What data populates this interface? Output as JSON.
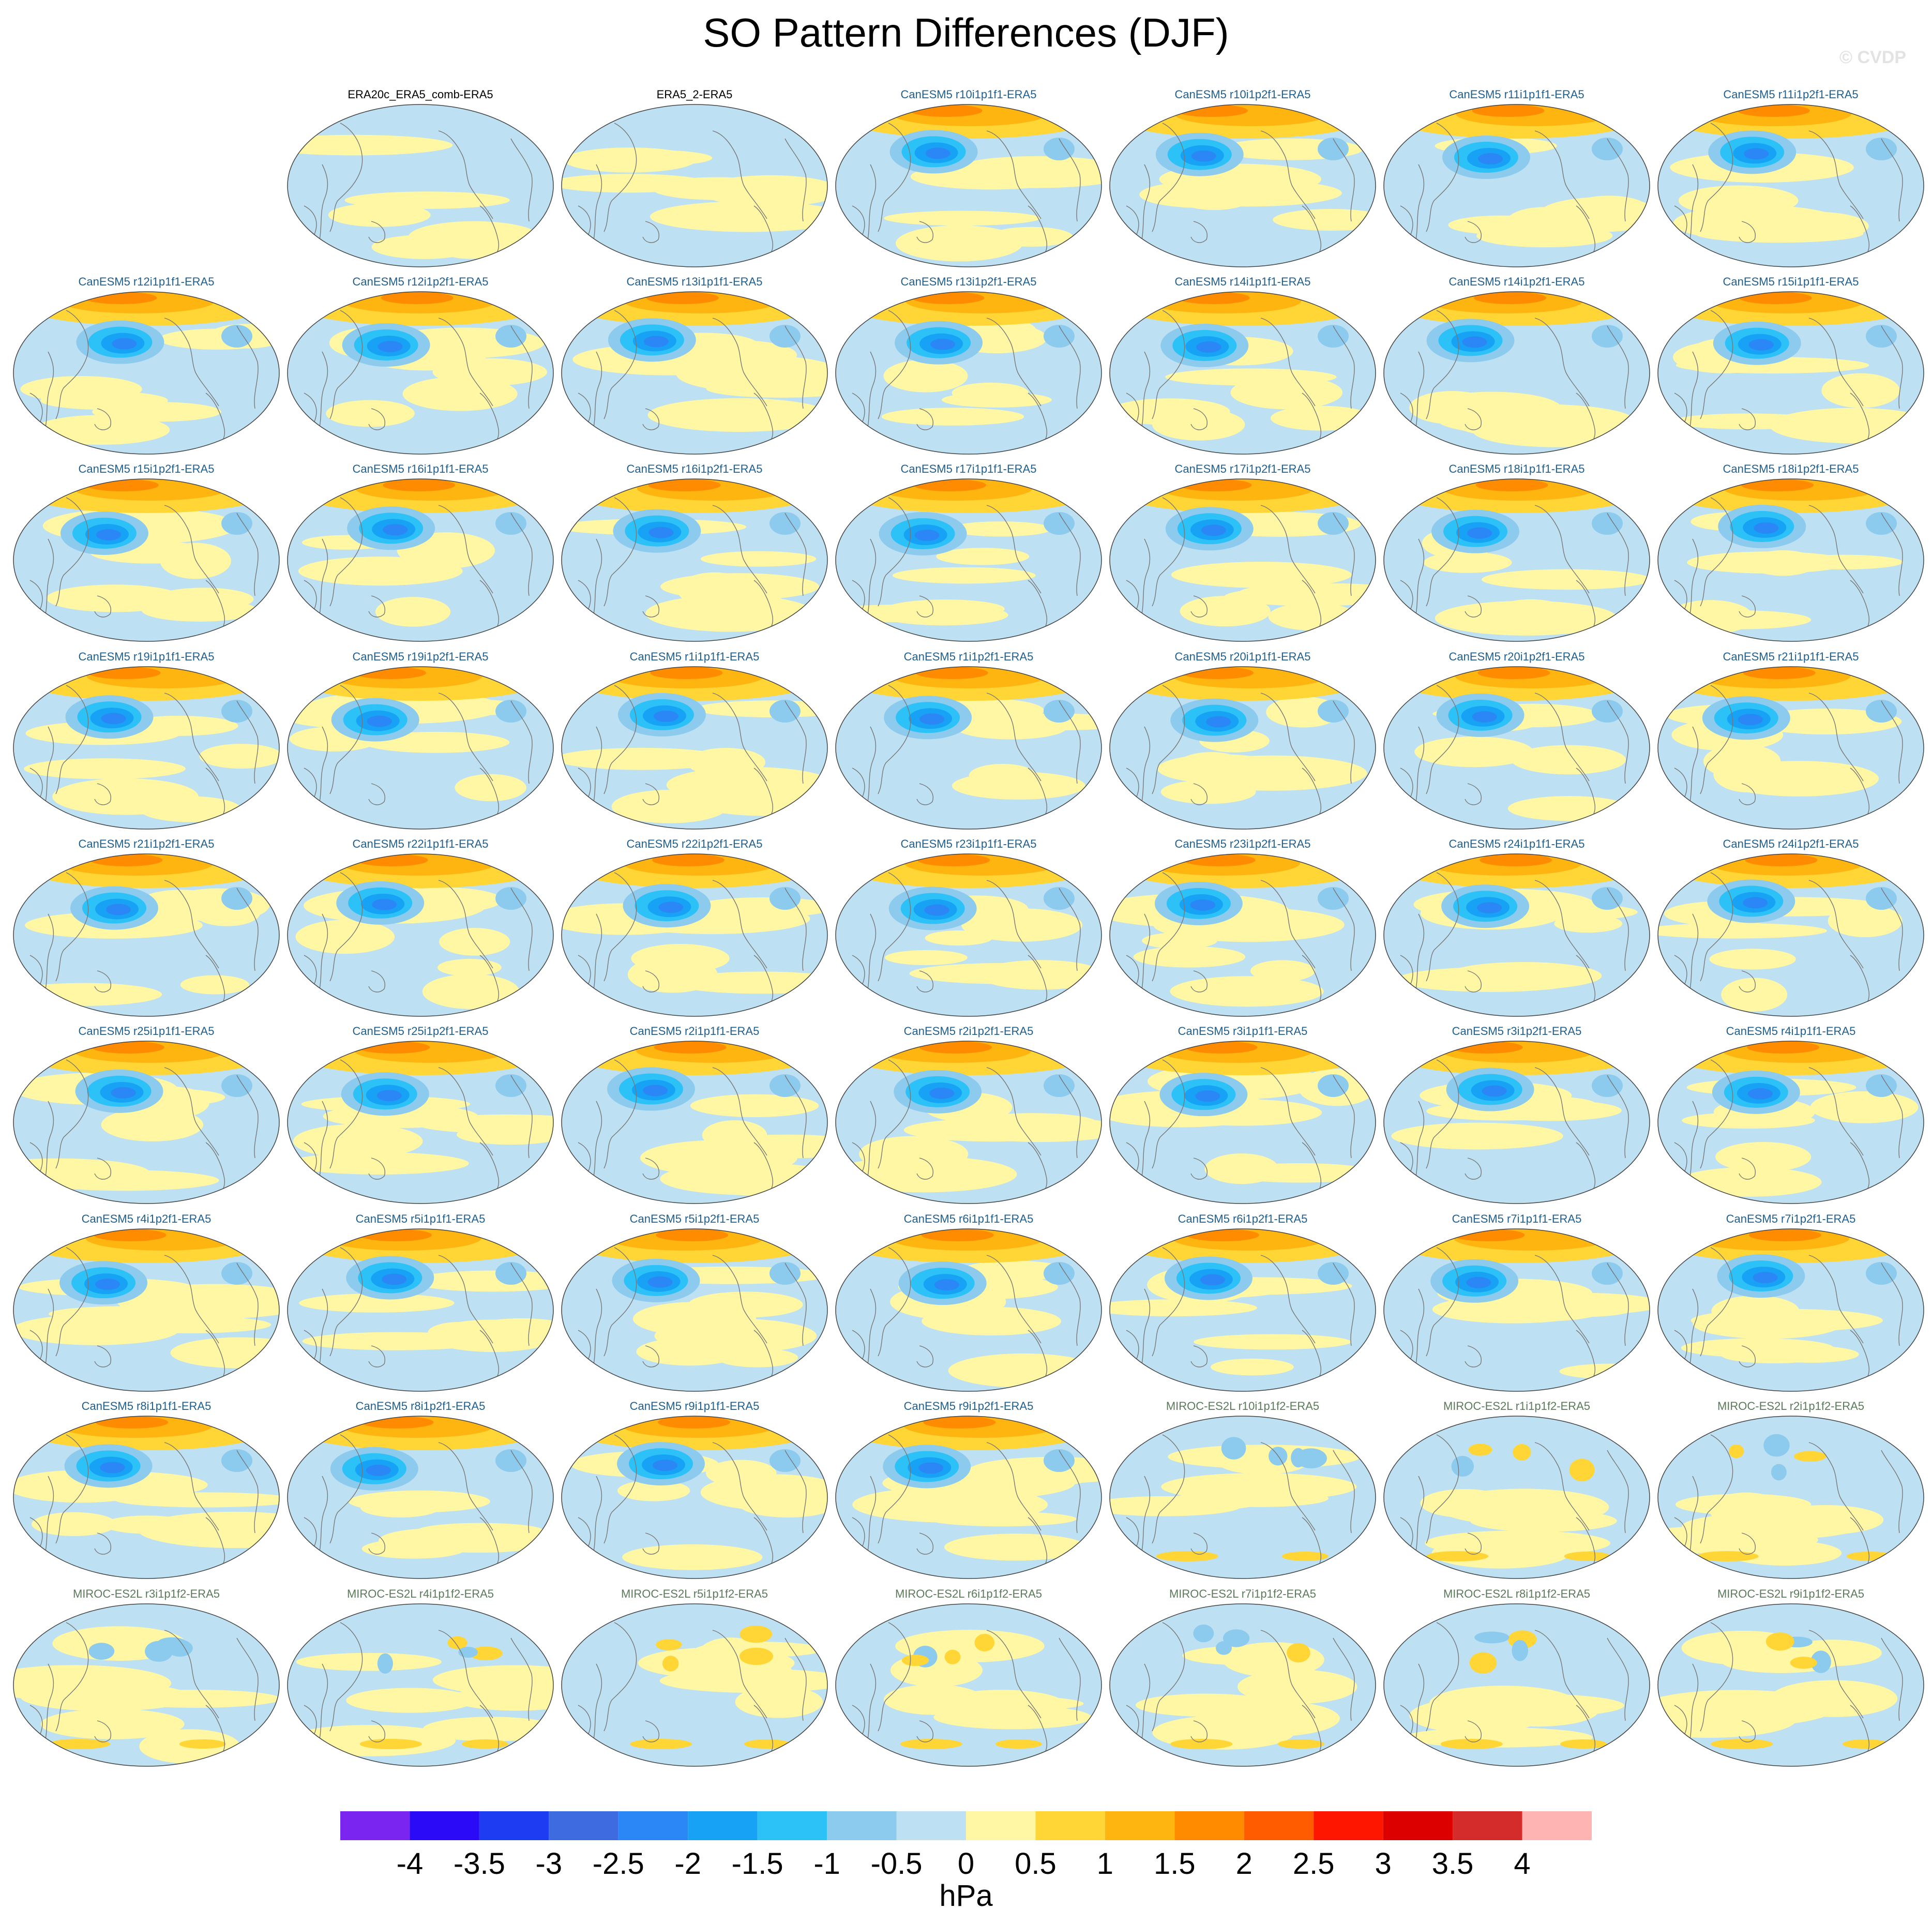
{
  "title": "SO Pattern Differences (DJF)",
  "watermark": "© CVDP",
  "chart_data": {
    "type": "heatmap",
    "title": "SO Pattern Differences (DJF)",
    "projection": "global ellipse (Robinson-like), Pacific-centered",
    "layout": {
      "rows": 9,
      "columns": 7,
      "first_row_start_column": 2
    },
    "panels": [
      {
        "label": "ERA20c_ERA5_comb-ERA5",
        "group": "obs"
      },
      {
        "label": "ERA5_2-ERA5",
        "group": "obs"
      },
      {
        "label": "CanESM5 r10i1p1f1-ERA5",
        "group": "CanESM5"
      },
      {
        "label": "CanESM5 r10i1p2f1-ERA5",
        "group": "CanESM5"
      },
      {
        "label": "CanESM5 r11i1p1f1-ERA5",
        "group": "CanESM5"
      },
      {
        "label": "CanESM5 r11i1p2f1-ERA5",
        "group": "CanESM5"
      },
      {
        "label": "CanESM5 r12i1p1f1-ERA5",
        "group": "CanESM5"
      },
      {
        "label": "CanESM5 r12i1p2f1-ERA5",
        "group": "CanESM5"
      },
      {
        "label": "CanESM5 r13i1p1f1-ERA5",
        "group": "CanESM5"
      },
      {
        "label": "CanESM5 r13i1p2f1-ERA5",
        "group": "CanESM5"
      },
      {
        "label": "CanESM5 r14i1p1f1-ERA5",
        "group": "CanESM5"
      },
      {
        "label": "CanESM5 r14i1p2f1-ERA5",
        "group": "CanESM5"
      },
      {
        "label": "CanESM5 r15i1p1f1-ERA5",
        "group": "CanESM5"
      },
      {
        "label": "CanESM5 r15i1p2f1-ERA5",
        "group": "CanESM5"
      },
      {
        "label": "CanESM5 r16i1p1f1-ERA5",
        "group": "CanESM5"
      },
      {
        "label": "CanESM5 r16i1p2f1-ERA5",
        "group": "CanESM5"
      },
      {
        "label": "CanESM5 r17i1p1f1-ERA5",
        "group": "CanESM5"
      },
      {
        "label": "CanESM5 r17i1p2f1-ERA5",
        "group": "CanESM5"
      },
      {
        "label": "CanESM5 r18i1p1f1-ERA5",
        "group": "CanESM5"
      },
      {
        "label": "CanESM5 r18i1p2f1-ERA5",
        "group": "CanESM5"
      },
      {
        "label": "CanESM5 r19i1p1f1-ERA5",
        "group": "CanESM5"
      },
      {
        "label": "CanESM5 r19i1p2f1-ERA5",
        "group": "CanESM5"
      },
      {
        "label": "CanESM5 r1i1p1f1-ERA5",
        "group": "CanESM5"
      },
      {
        "label": "CanESM5 r1i1p2f1-ERA5",
        "group": "CanESM5"
      },
      {
        "label": "CanESM5 r20i1p1f1-ERA5",
        "group": "CanESM5"
      },
      {
        "label": "CanESM5 r20i1p2f1-ERA5",
        "group": "CanESM5"
      },
      {
        "label": "CanESM5 r21i1p1f1-ERA5",
        "group": "CanESM5"
      },
      {
        "label": "CanESM5 r21i1p2f1-ERA5",
        "group": "CanESM5"
      },
      {
        "label": "CanESM5 r22i1p1f1-ERA5",
        "group": "CanESM5"
      },
      {
        "label": "CanESM5 r22i1p2f1-ERA5",
        "group": "CanESM5"
      },
      {
        "label": "CanESM5 r23i1p1f1-ERA5",
        "group": "CanESM5"
      },
      {
        "label": "CanESM5 r23i1p2f1-ERA5",
        "group": "CanESM5"
      },
      {
        "label": "CanESM5 r24i1p1f1-ERA5",
        "group": "CanESM5"
      },
      {
        "label": "CanESM5 r24i1p2f1-ERA5",
        "group": "CanESM5"
      },
      {
        "label": "CanESM5 r25i1p1f1-ERA5",
        "group": "CanESM5"
      },
      {
        "label": "CanESM5 r25i1p2f1-ERA5",
        "group": "CanESM5"
      },
      {
        "label": "CanESM5 r2i1p1f1-ERA5",
        "group": "CanESM5"
      },
      {
        "label": "CanESM5 r2i1p2f1-ERA5",
        "group": "CanESM5"
      },
      {
        "label": "CanESM5 r3i1p1f1-ERA5",
        "group": "CanESM5"
      },
      {
        "label": "CanESM5 r3i1p2f1-ERA5",
        "group": "CanESM5"
      },
      {
        "label": "CanESM5 r4i1p1f1-ERA5",
        "group": "CanESM5"
      },
      {
        "label": "CanESM5 r4i1p2f1-ERA5",
        "group": "CanESM5"
      },
      {
        "label": "CanESM5 r5i1p1f1-ERA5",
        "group": "CanESM5"
      },
      {
        "label": "CanESM5 r5i1p2f1-ERA5",
        "group": "CanESM5"
      },
      {
        "label": "CanESM5 r6i1p1f1-ERA5",
        "group": "CanESM5"
      },
      {
        "label": "CanESM5 r6i1p2f1-ERA5",
        "group": "CanESM5"
      },
      {
        "label": "CanESM5 r7i1p1f1-ERA5",
        "group": "CanESM5"
      },
      {
        "label": "CanESM5 r7i1p2f1-ERA5",
        "group": "CanESM5"
      },
      {
        "label": "CanESM5 r8i1p1f1-ERA5",
        "group": "CanESM5"
      },
      {
        "label": "CanESM5 r8i1p2f1-ERA5",
        "group": "CanESM5"
      },
      {
        "label": "CanESM5 r9i1p1f1-ERA5",
        "group": "CanESM5"
      },
      {
        "label": "CanESM5 r9i1p2f1-ERA5",
        "group": "CanESM5"
      },
      {
        "label": "MIROC-ES2L r10i1p1f2-ERA5",
        "group": "MIROC-ES2L"
      },
      {
        "label": "MIROC-ES2L r1i1p1f2-ERA5",
        "group": "MIROC-ES2L"
      },
      {
        "label": "MIROC-ES2L r2i1p1f2-ERA5",
        "group": "MIROC-ES2L"
      },
      {
        "label": "MIROC-ES2L r3i1p1f2-ERA5",
        "group": "MIROC-ES2L"
      },
      {
        "label": "MIROC-ES2L r4i1p1f2-ERA5",
        "group": "MIROC-ES2L"
      },
      {
        "label": "MIROC-ES2L r5i1p1f2-ERA5",
        "group": "MIROC-ES2L"
      },
      {
        "label": "MIROC-ES2L r6i1p1f2-ERA5",
        "group": "MIROC-ES2L"
      },
      {
        "label": "MIROC-ES2L r7i1p1f2-ERA5",
        "group": "MIROC-ES2L"
      },
      {
        "label": "MIROC-ES2L r8i1p1f2-ERA5",
        "group": "MIROC-ES2L"
      },
      {
        "label": "MIROC-ES2L r9i1p1f2-ERA5",
        "group": "MIROC-ES2L"
      }
    ],
    "group_title_colors": {
      "obs": "#000000",
      "CanESM5": "#1f5f8f",
      "MIROC-ES2L": "#5a7a5a"
    },
    "colorbar": {
      "levels": [
        -4,
        -3.5,
        -3,
        -2.5,
        -2,
        -1.5,
        -1,
        -0.5,
        0,
        0.5,
        1,
        1.5,
        2,
        2.5,
        3,
        3.5,
        4
      ],
      "tick_labels": [
        "-4",
        "-3.5",
        "-3",
        "-2.5",
        "-2",
        "-1.5",
        "-1",
        "-0.5",
        "0",
        "0.5",
        "1",
        "1.5",
        "2",
        "2.5",
        "3",
        "3.5",
        "4"
      ],
      "colors": [
        "#7b25f0",
        "#2b0af7",
        "#1e3cf2",
        "#3f6be0",
        "#2a87f5",
        "#17a2f5",
        "#2cc1f7",
        "#8ccaee",
        "#bde0f2",
        "#fff7a3",
        "#ffd635",
        "#ffb50f",
        "#ff8c00",
        "#ff5c00",
        "#ff1600",
        "#dd0000",
        "#d42b2b",
        "#ffb4b4"
      ],
      "units": "hPa",
      "extend": "both"
    }
  }
}
